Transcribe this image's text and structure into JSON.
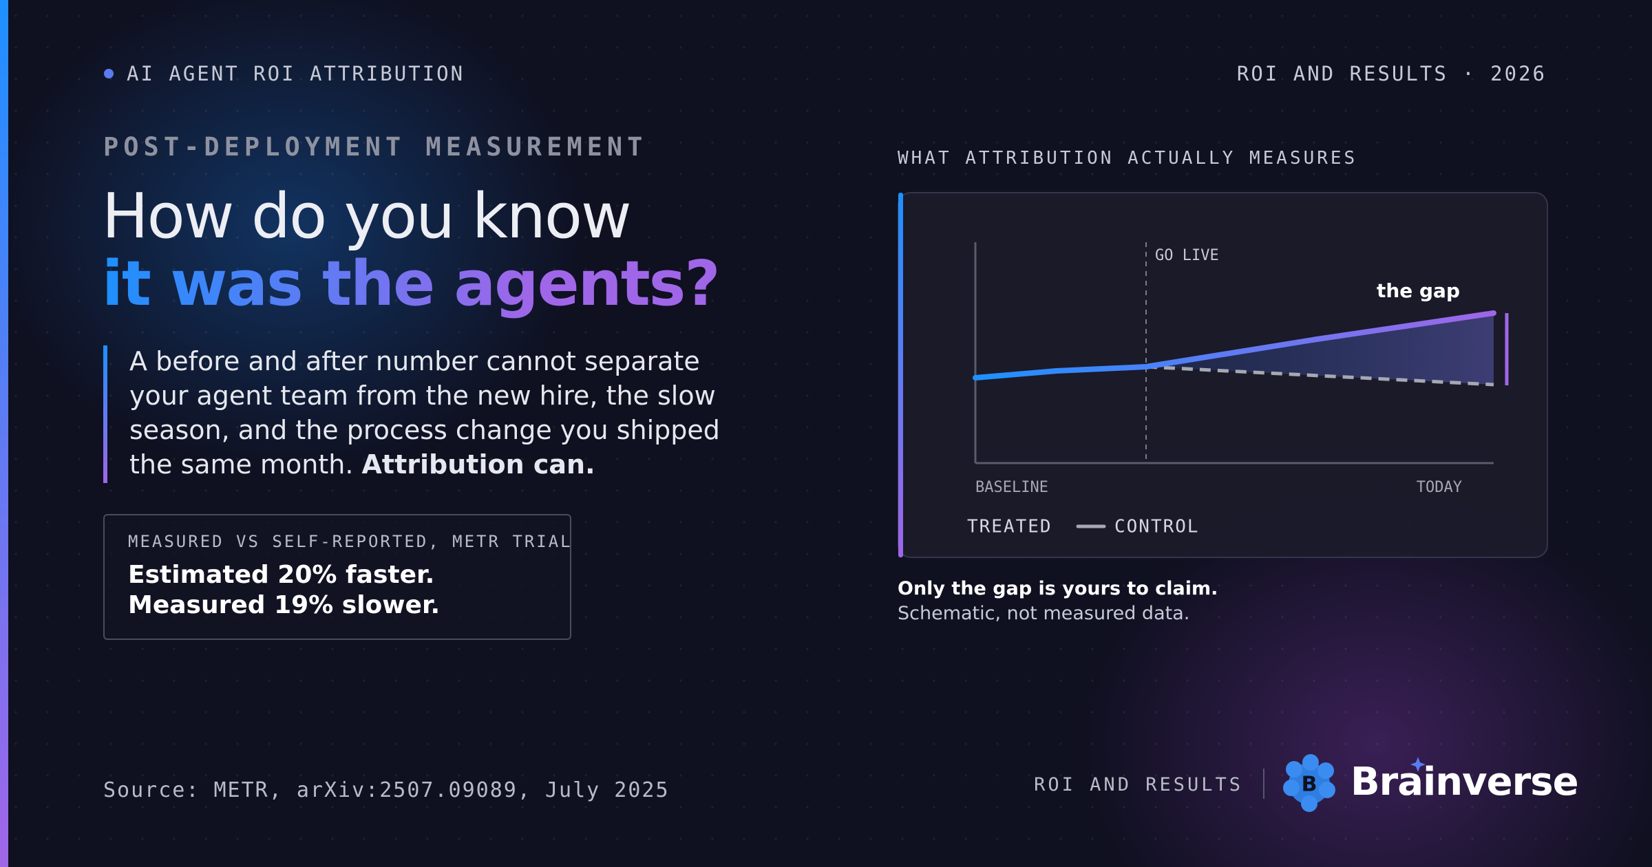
{
  "header": {
    "eyebrow": "AI AGENT ROI ATTRIBUTION",
    "series": "ROI AND RESULTS · 2026"
  },
  "headline": {
    "kicker": "POST-DEPLOYMENT MEASUREMENT",
    "line1": "How do you know",
    "line2": "it was the agents?"
  },
  "body": {
    "text": "A before and after number cannot separate your agent team from the new hire, the slow season, and the process change you shipped the same month.",
    "emphasis": "Attribution can."
  },
  "stat": {
    "label": "MEASURED VS SELF-REPORTED, METR TRIAL",
    "lines": [
      "Estimated 20% faster.",
      "Measured 19% slower."
    ]
  },
  "diagram": {
    "title": "WHAT ATTRIBUTION ACTUALLY MEASURES",
    "go_live": "GO LIVE",
    "gap_label": "the gap",
    "start_label": "BASELINE",
    "end_label": "TODAY",
    "legend": [
      "TREATED",
      "CONTROL"
    ]
  },
  "caption": {
    "lead": "Only the gap is yours to claim.",
    "note": "Schematic, not measured data."
  },
  "footer": {
    "source": "Source: METR, arXiv:2507.09089, July 2025",
    "label": "ROI AND RESULTS",
    "brand": "Brainverse"
  }
}
